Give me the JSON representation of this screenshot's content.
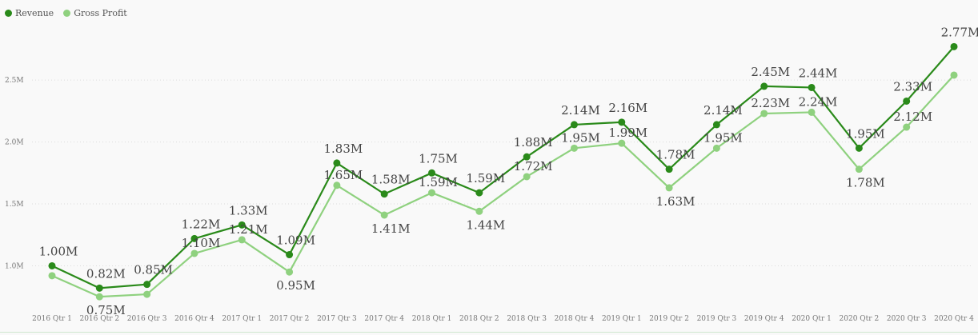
{
  "chart_data": {
    "type": "line",
    "categories": [
      "2016 Qtr 1",
      "2016 Qtr 2",
      "2016 Qtr 3",
      "2016 Qtr 4",
      "2017 Qtr 1",
      "2017 Qtr 2",
      "2017 Qtr 3",
      "2017 Qtr 4",
      "2018 Qtr 1",
      "2018 Qtr 2",
      "2018 Qtr 3",
      "2018 Qtr 4",
      "2019 Qtr 1",
      "2019 Qtr 2",
      "2019 Qtr 3",
      "2019 Qtr 4",
      "2020 Qtr 1",
      "2020 Qtr 2",
      "2020 Qtr 3",
      "2020 Qtr 4"
    ],
    "series": [
      {
        "name": "Revenue",
        "color": "#2a8a1a",
        "values": [
          1.0,
          0.82,
          0.85,
          1.22,
          1.33,
          1.09,
          1.83,
          1.58,
          1.75,
          1.59,
          1.88,
          2.14,
          2.16,
          1.78,
          2.14,
          2.45,
          2.44,
          1.95,
          2.33,
          2.77
        ],
        "labels": [
          "1.00M",
          "0.82M",
          "0.85M",
          "1.22M",
          "1.33M",
          "1.09M",
          "1.83M",
          "1.58M",
          "1.75M",
          "1.59M",
          "1.88M",
          "2.14M",
          "2.16M",
          "1.78M",
          "2.14M",
          "2.45M",
          "2.44M",
          "1.95M",
          "2.33M",
          "2.77M"
        ]
      },
      {
        "name": "Gross Profit",
        "color": "#8fd17f",
        "values": [
          0.92,
          0.75,
          0.77,
          1.1,
          1.21,
          0.95,
          1.65,
          1.41,
          1.59,
          1.44,
          1.72,
          1.95,
          1.99,
          1.63,
          1.95,
          2.23,
          2.24,
          1.78,
          2.12,
          2.54
        ],
        "labels": [
          "",
          "0.75M",
          "",
          "1.10M",
          "1.21M",
          "0.95M",
          "1.65M",
          "1.41M",
          "1.59M",
          "1.44M",
          "1.72M",
          "1.95M",
          "1.99M",
          "1.63M",
          "1.95M",
          "2.23M",
          "2.24M",
          "1.78M",
          "2.12M",
          ""
        ]
      }
    ],
    "y_ticks": [
      1.0,
      1.5,
      2.0,
      2.5
    ],
    "y_tick_labels": [
      "1.0M",
      "1.5M",
      "2.0M",
      "2.5M"
    ],
    "ylim": [
      0.68,
      3.05
    ],
    "grid": true,
    "legend_position": "top-left"
  }
}
